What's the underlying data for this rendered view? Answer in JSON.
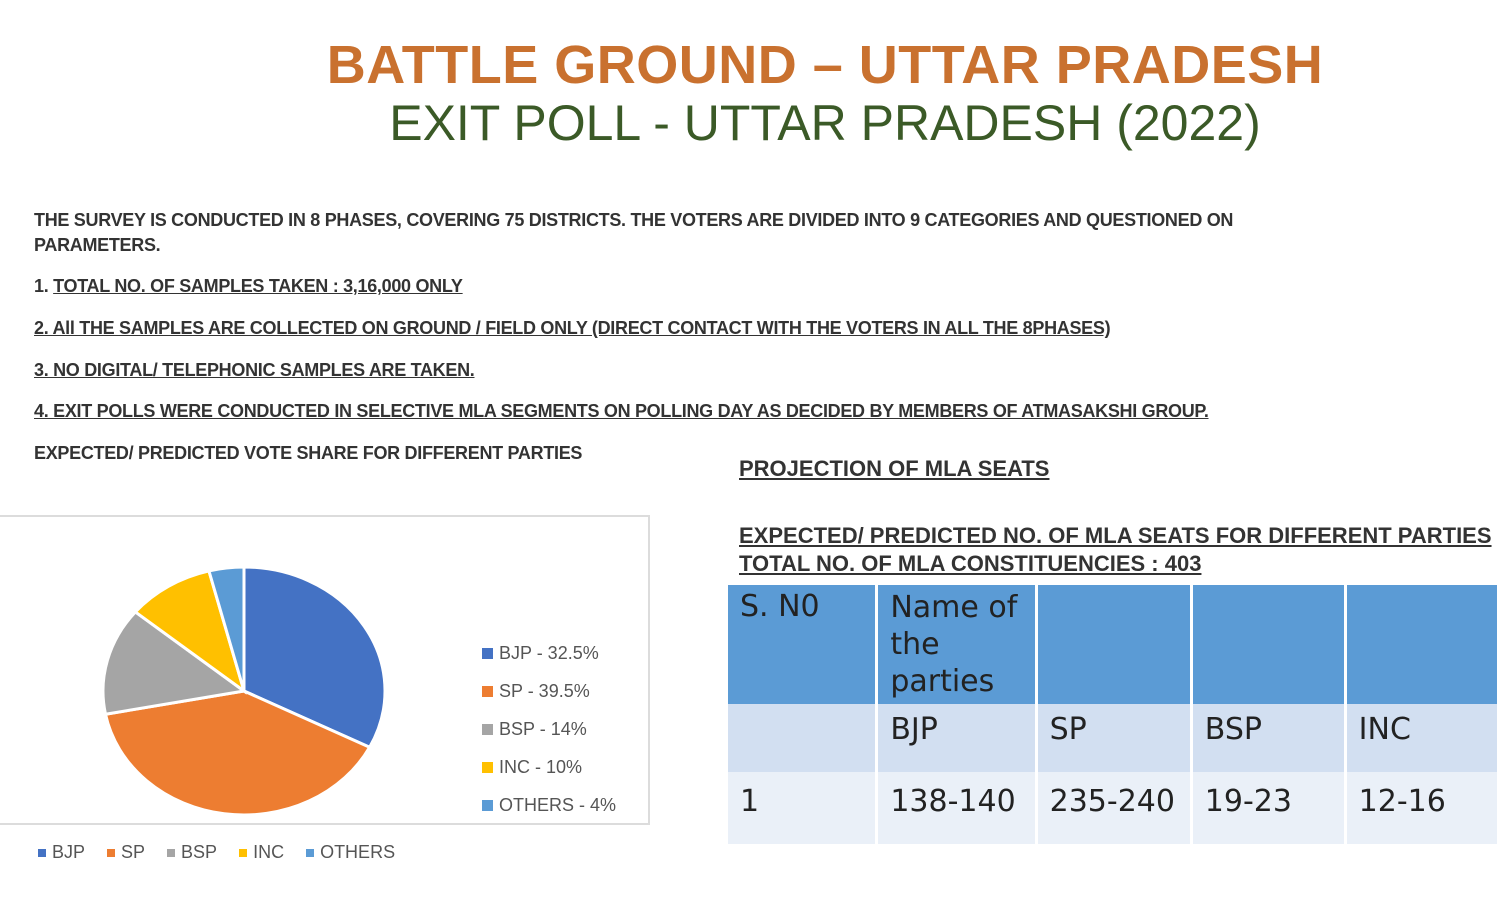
{
  "title": "BATTLE GROUND – UTTAR PRADESH",
  "subtitle": "EXIT POLL - UTTAR PRADESH (2022)",
  "intro": {
    "line1": "THE SURVEY IS CONDUCTED IN 8 PHASES, COVERING 75 DISTRICTS. THE VOTERS ARE DIVIDED INTO 9 CATEGORIES AND QUESTIONED ON",
    "line2": "PARAMETERS."
  },
  "points": {
    "p1_num": "1. ",
    "p1_text": "TOTAL NO. OF SAMPLES TAKEN : 3,16,000 ONLY",
    "p2": "2. All THE SAMPLES ARE COLLECTED ON GROUND / FIELD ONLY (DIRECT CONTACT WITH THE VOTERS IN ALL THE 8PHASES)",
    "p3": "3. NO DIGITAL/ TELEPHONIC SAMPLES ARE TAKEN.",
    "p4": "4. EXIT POLLS WERE CONDUCTED IN SELECTIVE MLA SEGMENTS ON POLLING DAY AS DECIDED BY MEMBERS OF ATMASAKSHI GROUP."
  },
  "vote_share_heading": "EXPECTED/ PREDICTED VOTE SHARE FOR DIFFERENT PARTIES",
  "chart_data": {
    "type": "pie",
    "title": "",
    "categories": [
      "BJP",
      "SP",
      "BSP",
      "INC",
      "OTHERS"
    ],
    "values": [
      32.5,
      39.5,
      14,
      10,
      4
    ],
    "labels": [
      "BJP - 32.5%",
      "SP - 39.5%",
      "BSP - 14%",
      "INC - 10%",
      "OTHERS - 4%"
    ],
    "colors": [
      "#4472c4",
      "#ed7d31",
      "#a5a5a5",
      "#ffc000",
      "#5b9bd5"
    ],
    "legend": "right"
  },
  "legend_bottom": [
    "BJP",
    "SP",
    "BSP",
    "INC",
    "OTHERS"
  ],
  "projection": {
    "title": "PROJECTION OF MLA SEATS",
    "expected_line1": "EXPECTED/ PREDICTED NO. OF MLA SEATS FOR DIFFERENT PARTIES",
    "expected_line2": "TOTAL NO. OF MLA CONSTITUENCIES : 403",
    "table": {
      "col1_header": "S. N0",
      "col2_header": "Name of the parties",
      "parties": [
        "BJP",
        "SP",
        "BSP",
        "INC"
      ],
      "rows": [
        {
          "sno": "1",
          "values": [
            "138-140",
            "235-240",
            "19-23",
            "12-16"
          ]
        }
      ]
    }
  }
}
